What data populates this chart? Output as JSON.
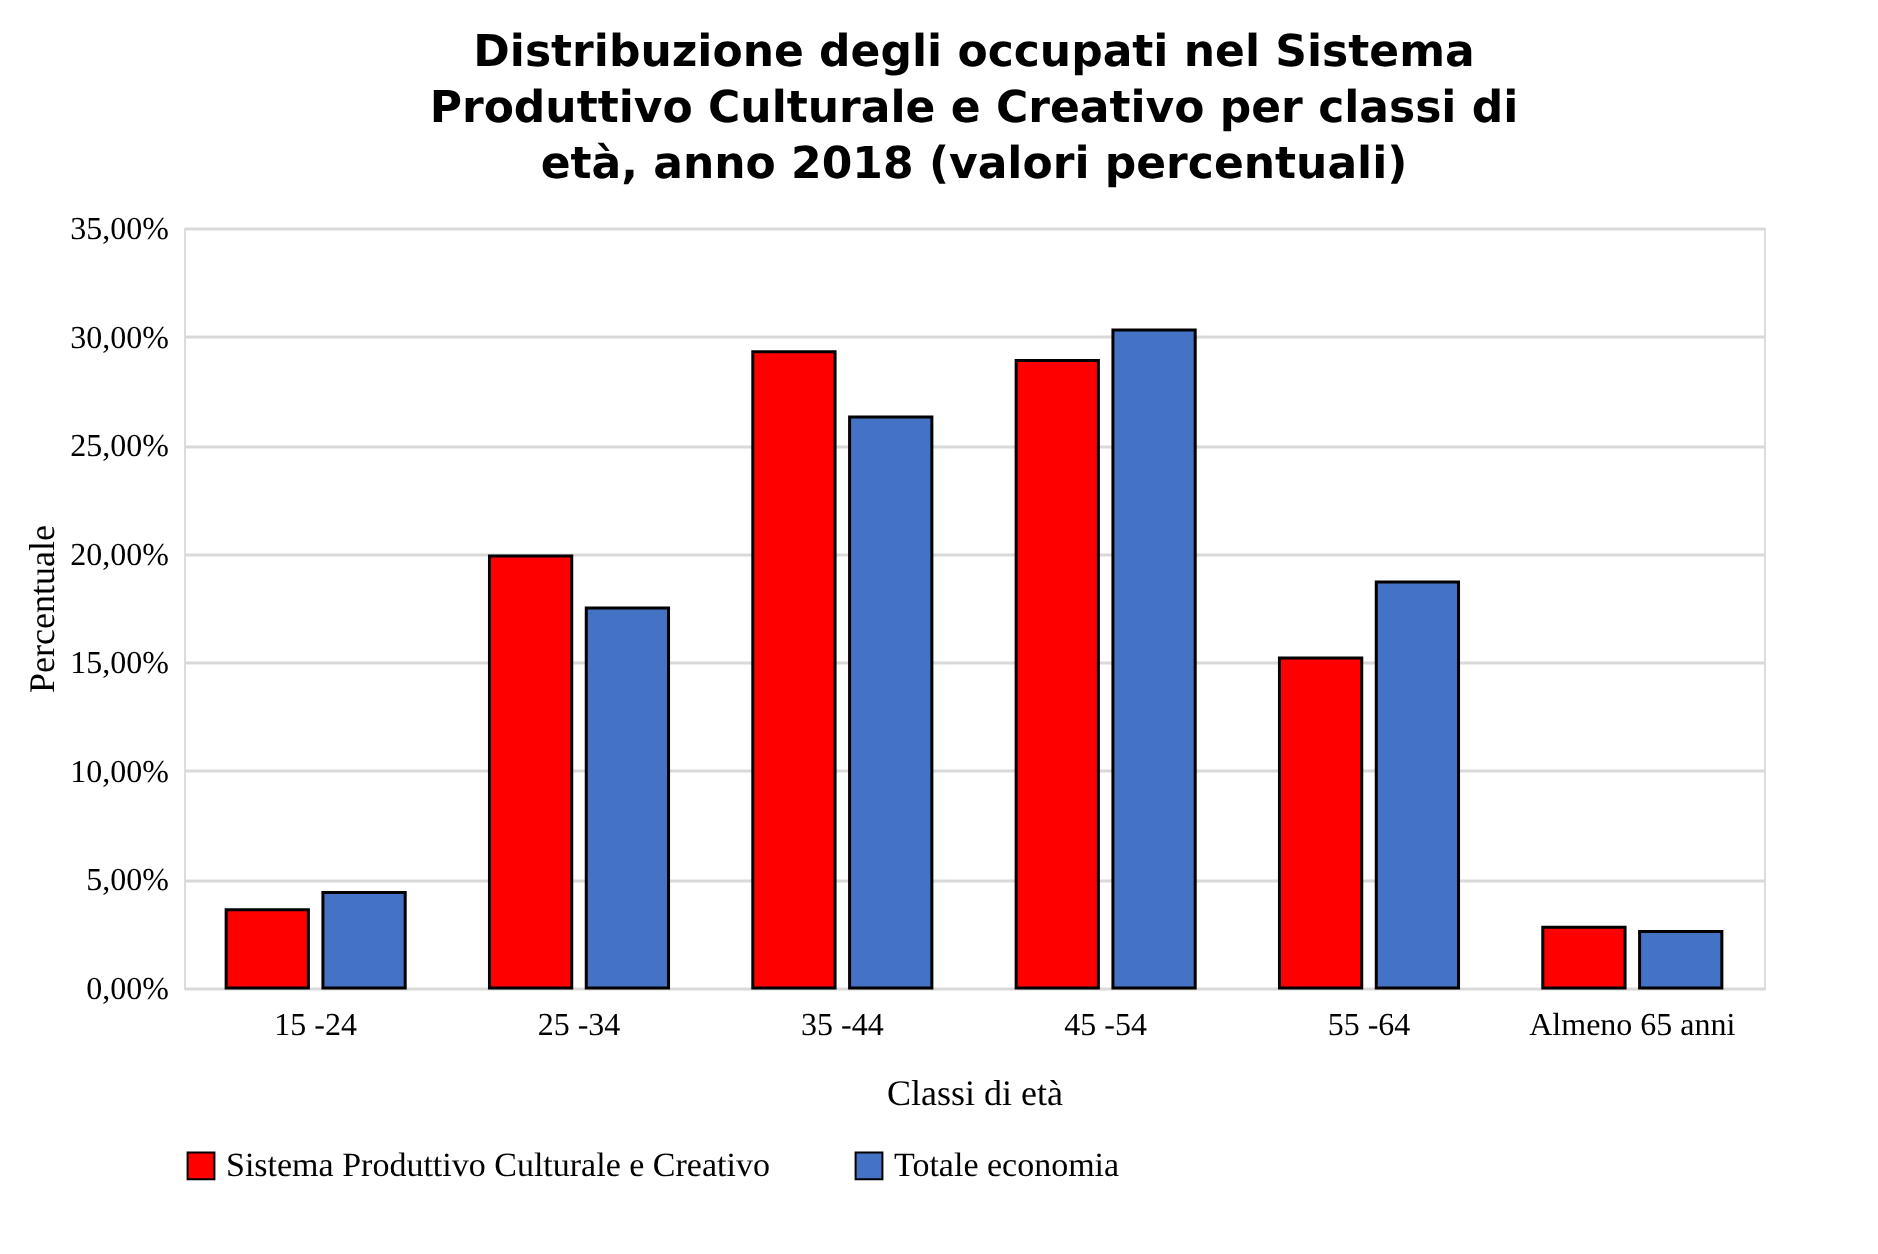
{
  "chart_data": {
    "type": "bar",
    "title": "Distribuzione degli occupati nel Sistema Produttivo Culturale e Creativo per classi di età, anno 2018 (valori percentuali)",
    "xlabel": "Classi di età",
    "ylabel": "Percentuale",
    "categories": [
      "15 -24",
      "25 -34",
      "35 -44",
      "45 -54",
      "55 -64",
      "Almeno 65 anni"
    ],
    "series": [
      {
        "name": "Sistema Produttivo Culturale e Creativo",
        "color": "#ff0000",
        "values": [
          3.6,
          19.9,
          29.3,
          28.9,
          15.2,
          2.8
        ]
      },
      {
        "name": "Totale economia",
        "color": "#4472c4",
        "values": [
          4.4,
          17.5,
          26.3,
          30.3,
          18.7,
          2.6
        ]
      }
    ],
    "ylim": [
      0,
      35
    ],
    "yticks": [
      {
        "value": 0,
        "label": "0,00%"
      },
      {
        "value": 5,
        "label": "5,00%"
      },
      {
        "value": 10,
        "label": "10,00%"
      },
      {
        "value": 15,
        "label": "15,00%"
      },
      {
        "value": 20,
        "label": "20,00%"
      },
      {
        "value": 25,
        "label": "25,00%"
      },
      {
        "value": 30,
        "label": "30,00%"
      },
      {
        "value": 35,
        "label": "35,00%"
      }
    ],
    "grid": "y",
    "legend": "bottom"
  }
}
